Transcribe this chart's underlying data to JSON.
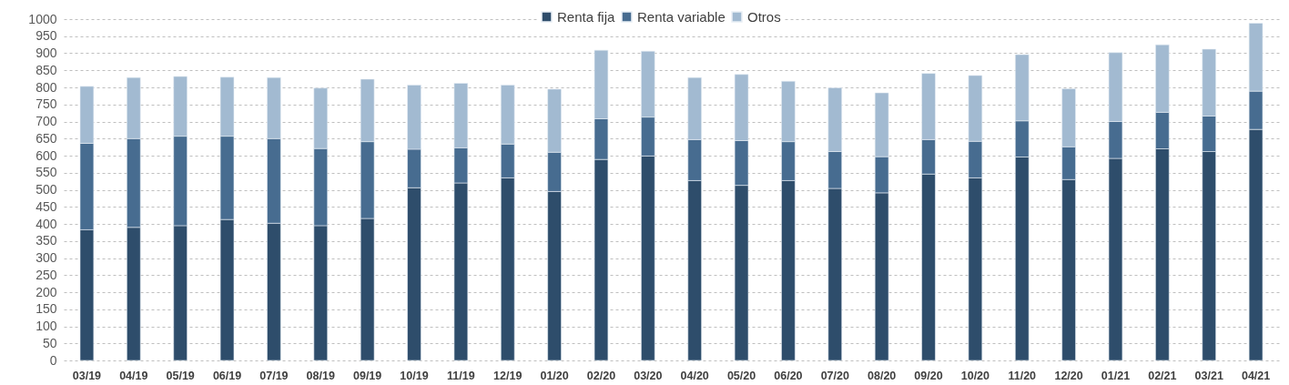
{
  "chart_data": {
    "type": "bar",
    "stacked": true,
    "legend": "top",
    "grid": "y",
    "line_style": "dashed",
    "categories": [
      "03/19",
      "04/19",
      "05/19",
      "06/19",
      "07/19",
      "08/19",
      "09/19",
      "10/19",
      "11/19",
      "12/19",
      "01/20",
      "02/20",
      "03/20",
      "04/20",
      "05/20",
      "06/20",
      "07/20",
      "08/20",
      "09/20",
      "10/20",
      "11/20",
      "12/20",
      "01/21",
      "02/21",
      "03/21",
      "04/21"
    ],
    "ylim": [
      0,
      1000
    ],
    "yticks": [
      0,
      50,
      100,
      150,
      200,
      250,
      300,
      350,
      400,
      450,
      500,
      550,
      600,
      650,
      700,
      750,
      800,
      850,
      900,
      950,
      1000
    ],
    "series": [
      {
        "name": "Renta fija",
        "color": "#2e4d6b",
        "values": [
          383,
          390,
          395,
          413,
          402,
          395,
          416,
          506,
          520,
          535,
          495,
          589,
          599,
          527,
          513,
          527,
          504,
          491,
          546,
          535,
          596,
          530,
          592,
          620,
          612,
          677
        ]
      },
      {
        "name": "Renta variable",
        "color": "#476c90",
        "values": [
          253,
          260,
          262,
          244,
          248,
          226,
          225,
          113,
          103,
          99,
          115,
          119,
          114,
          120,
          131,
          114,
          108,
          106,
          101,
          107,
          106,
          96,
          108,
          107,
          104,
          112
        ]
      },
      {
        "name": "Otros",
        "color": "#a2bad1",
        "values": [
          167,
          179,
          175,
          173,
          179,
          177,
          183,
          188,
          189,
          173,
          185,
          201,
          193,
          182,
          194,
          177,
          187,
          187,
          194,
          193,
          194,
          170,
          202,
          198,
          196,
          199
        ]
      }
    ]
  }
}
